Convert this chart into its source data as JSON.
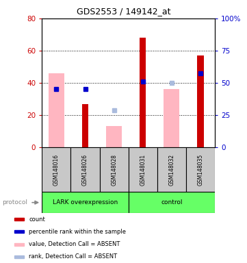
{
  "title": "GDS2553 / 149142_at",
  "samples": [
    "GSM148016",
    "GSM148026",
    "GSM148028",
    "GSM148031",
    "GSM148032",
    "GSM148035"
  ],
  "ylim_left": [
    0,
    80
  ],
  "ylim_right": [
    0,
    100
  ],
  "yticks_left": [
    0,
    20,
    40,
    60,
    80
  ],
  "yticks_right": [
    0,
    25,
    50,
    75,
    100
  ],
  "count_values": [
    null,
    27,
    null,
    68,
    null,
    57
  ],
  "count_color": "#CC0000",
  "rank_values": [
    36,
    36,
    null,
    41,
    null,
    46
  ],
  "rank_color": "#0000CC",
  "absent_value_bars": [
    46,
    null,
    13,
    null,
    36,
    null
  ],
  "absent_value_color": "#FFB6C1",
  "absent_rank_markers": [
    null,
    null,
    23,
    null,
    40,
    null
  ],
  "absent_rank_color": "#AABBDD",
  "background_color": "#ffffff",
  "tick_label_color_left": "#CC0000",
  "tick_label_color_right": "#0000CC",
  "group_labels": [
    "LARK overexpression",
    "control"
  ],
  "group_color": "#66FF66",
  "sample_box_color": "#C8C8C8",
  "legend_items": [
    {
      "label": "count",
      "color": "#CC0000"
    },
    {
      "label": "percentile rank within the sample",
      "color": "#0000CC"
    },
    {
      "label": "value, Detection Call = ABSENT",
      "color": "#FFB6C1"
    },
    {
      "label": "rank, Detection Call = ABSENT",
      "color": "#AABBDD"
    }
  ]
}
